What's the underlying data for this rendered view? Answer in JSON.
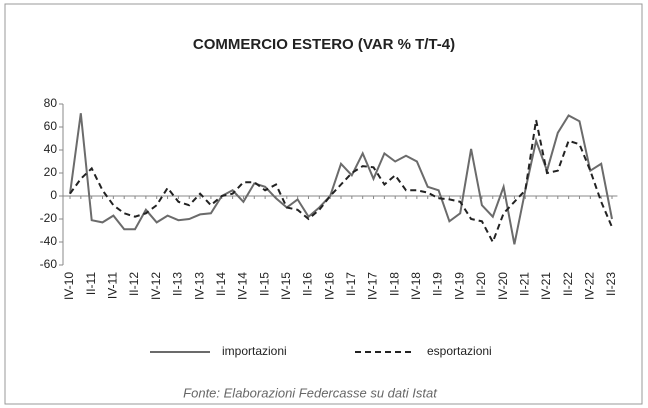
{
  "chart_data": {
    "type": "line",
    "title": "COMMERCIO ESTERO (VAR % T/T-4)",
    "source": "Fonte: Elaborazioni Federcasse su dati Istat",
    "categories": [
      "IV-10",
      null,
      "II-11",
      null,
      "IV-11",
      null,
      "II-12",
      null,
      "IV-12",
      null,
      "II-13",
      null,
      "IV-13",
      null,
      "II-14",
      null,
      "IV-14",
      null,
      "II-15",
      null,
      "IV-15",
      null,
      "II-16",
      null,
      "IV-16",
      null,
      "II-17",
      null,
      "IV-17",
      null,
      "II-18",
      null,
      "IV-18",
      null,
      "II-19",
      null,
      "IV-19",
      null,
      "II-20",
      null,
      "IV-20",
      null,
      "II-21",
      null,
      "IV-21",
      null,
      "II-22",
      null,
      "IV-22",
      null,
      "II-23"
    ],
    "series": [
      {
        "name": "importazioni",
        "color": "#6b6b6b",
        "style": "solid",
        "values": [
          2,
          72,
          -21,
          -23,
          -17,
          -29,
          -29,
          -12,
          -23,
          -17,
          -21,
          -20,
          -16,
          -15,
          0,
          5,
          -5,
          11,
          8,
          -2,
          -10,
          -3,
          -18,
          -10,
          0,
          28,
          18,
          37,
          15,
          37,
          30,
          35,
          30,
          8,
          5,
          -22,
          -15,
          41,
          -8,
          -18,
          8,
          -42,
          5,
          48,
          22,
          55,
          70,
          65,
          22,
          28,
          -20
        ]
      },
      {
        "name": "esportazioni",
        "color": "#222222",
        "style": "dashed",
        "values": [
          2,
          15,
          24,
          5,
          -8,
          -15,
          -18,
          -15,
          -8,
          7,
          -5,
          -8,
          2,
          -8,
          0,
          2,
          12,
          12,
          5,
          10,
          -10,
          -12,
          -20,
          -12,
          0,
          10,
          20,
          26,
          25,
          10,
          18,
          5,
          5,
          3,
          -2,
          -3,
          -5,
          -20,
          -22,
          -40,
          -15,
          -5,
          5,
          66,
          20,
          22,
          48,
          45,
          22,
          -5,
          -27
        ]
      }
    ],
    "ylim": [
      -60,
      80
    ],
    "yticks": [
      -60,
      -40,
      -20,
      0,
      20,
      40,
      60,
      80
    ]
  }
}
